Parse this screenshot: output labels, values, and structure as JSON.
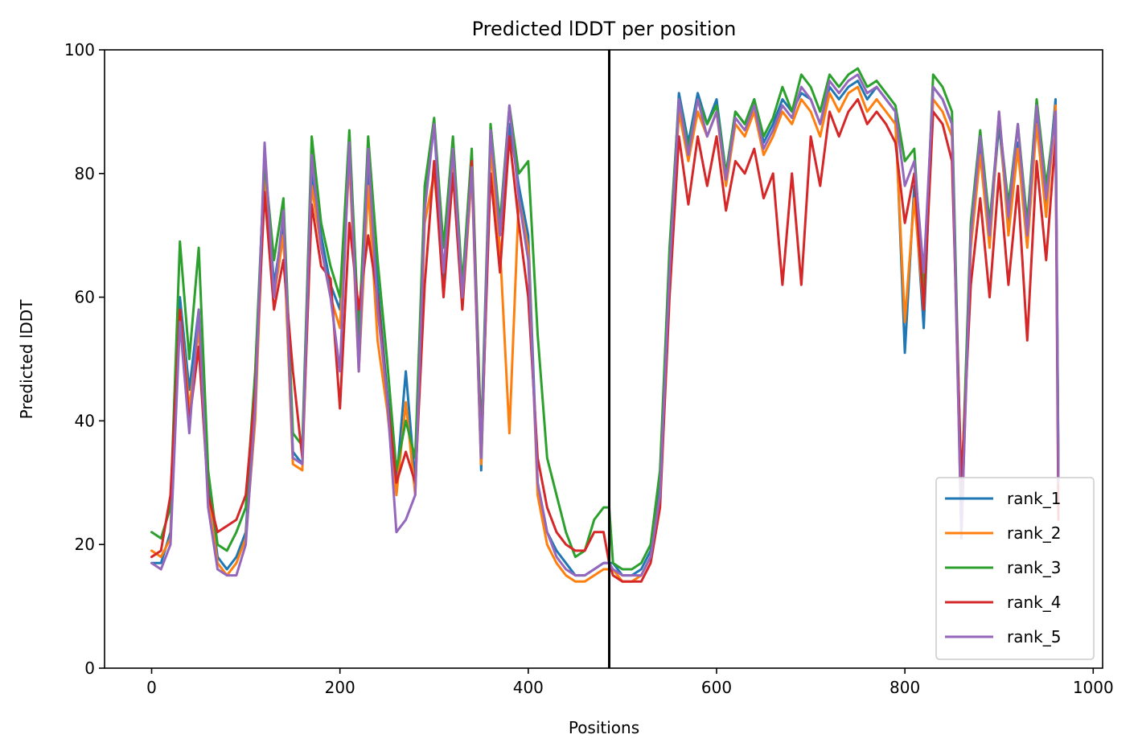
{
  "chart_data": {
    "type": "line",
    "title": "Predicted lDDT per position",
    "xlabel": "Positions",
    "ylabel": "Predicted lDDT",
    "xlim": [
      -50,
      1010
    ],
    "ylim": [
      0,
      100
    ],
    "xticks": [
      0,
      200,
      400,
      600,
      800,
      1000
    ],
    "yticks": [
      0,
      20,
      40,
      60,
      80,
      100
    ],
    "grid": false,
    "legend_position": "bottom-right",
    "vertical_line_x": 486,
    "series": [
      {
        "name": "rank_1",
        "color": "#1f77b4",
        "x": [
          0,
          10,
          20,
          30,
          40,
          50,
          60,
          70,
          80,
          90,
          100,
          110,
          120,
          130,
          140,
          150,
          160,
          170,
          180,
          190,
          200,
          210,
          220,
          230,
          240,
          250,
          260,
          270,
          280,
          290,
          300,
          310,
          320,
          330,
          340,
          350,
          360,
          370,
          380,
          390,
          400,
          410,
          420,
          430,
          440,
          450,
          460,
          470,
          480,
          486,
          490,
          500,
          510,
          520,
          530,
          540,
          550,
          560,
          570,
          580,
          590,
          600,
          610,
          620,
          630,
          640,
          650,
          660,
          670,
          680,
          690,
          700,
          710,
          720,
          730,
          740,
          750,
          760,
          770,
          780,
          790,
          800,
          810,
          820,
          830,
          840,
          850,
          860,
          870,
          880,
          890,
          900,
          910,
          920,
          930,
          940,
          950,
          960,
          963
        ],
        "values": [
          17,
          17,
          22,
          60,
          45,
          58,
          30,
          18,
          16,
          18,
          22,
          45,
          83,
          62,
          72,
          35,
          33,
          80,
          70,
          62,
          58,
          84,
          50,
          80,
          62,
          45,
          30,
          48,
          30,
          75,
          88,
          62,
          84,
          60,
          82,
          32,
          85,
          70,
          88,
          78,
          70,
          30,
          22,
          19,
          17,
          15,
          15,
          16,
          17,
          17,
          17,
          15,
          15,
          16,
          19,
          30,
          65,
          93,
          85,
          93,
          88,
          92,
          80,
          90,
          88,
          92,
          85,
          88,
          92,
          90,
          93,
          92,
          88,
          94,
          92,
          94,
          95,
          92,
          94,
          92,
          90,
          51,
          78,
          55,
          94,
          92,
          88,
          25,
          70,
          85,
          70,
          88,
          72,
          85,
          70,
          90,
          75,
          92,
          33
        ]
      },
      {
        "name": "rank_2",
        "color": "#ff7f0e",
        "x": [
          0,
          10,
          20,
          30,
          40,
          50,
          60,
          70,
          80,
          90,
          100,
          110,
          120,
          130,
          140,
          150,
          160,
          170,
          180,
          190,
          200,
          210,
          220,
          230,
          240,
          250,
          260,
          270,
          280,
          290,
          300,
          310,
          320,
          330,
          340,
          350,
          360,
          370,
          380,
          390,
          400,
          410,
          420,
          430,
          440,
          450,
          460,
          470,
          480,
          486,
          490,
          500,
          510,
          520,
          530,
          540,
          550,
          560,
          570,
          580,
          590,
          600,
          610,
          620,
          630,
          640,
          650,
          660,
          670,
          680,
          690,
          700,
          710,
          720,
          730,
          740,
          750,
          760,
          770,
          780,
          790,
          800,
          810,
          820,
          830,
          840,
          850,
          860,
          870,
          880,
          890,
          900,
          910,
          920,
          930,
          940,
          950,
          960,
          963
        ],
        "values": [
          19,
          18,
          21,
          58,
          42,
          55,
          28,
          17,
          15,
          17,
          21,
          40,
          80,
          60,
          70,
          33,
          32,
          78,
          68,
          60,
          55,
          82,
          48,
          78,
          53,
          42,
          28,
          43,
          28,
          72,
          80,
          64,
          82,
          58,
          80,
          33,
          84,
          68,
          38,
          76,
          68,
          28,
          20,
          17,
          15,
          14,
          14,
          15,
          16,
          16,
          16,
          14,
          14,
          15,
          18,
          28,
          62,
          90,
          82,
          90,
          86,
          90,
          78,
          88,
          86,
          90,
          83,
          86,
          90,
          88,
          92,
          90,
          86,
          93,
          90,
          93,
          94,
          90,
          92,
          90,
          88,
          56,
          76,
          58,
          92,
          90,
          86,
          22,
          68,
          83,
          68,
          90,
          70,
          84,
          68,
          88,
          73,
          91,
          30
        ]
      },
      {
        "name": "rank_3",
        "color": "#2ca02c",
        "x": [
          0,
          10,
          20,
          30,
          40,
          50,
          60,
          70,
          80,
          90,
          100,
          110,
          120,
          130,
          140,
          150,
          160,
          170,
          180,
          190,
          200,
          210,
          220,
          230,
          240,
          250,
          260,
          270,
          280,
          290,
          300,
          310,
          320,
          330,
          340,
          350,
          360,
          370,
          380,
          390,
          400,
          410,
          420,
          430,
          440,
          450,
          460,
          470,
          480,
          486,
          490,
          500,
          510,
          520,
          530,
          540,
          550,
          560,
          570,
          580,
          590,
          600,
          610,
          620,
          630,
          640,
          650,
          660,
          670,
          680,
          690,
          700,
          710,
          720,
          730,
          740,
          750,
          760,
          770,
          780,
          790,
          800,
          810,
          820,
          830,
          840,
          850,
          860,
          870,
          880,
          890,
          900,
          910,
          920,
          930,
          940,
          950,
          960,
          963
        ],
        "values": [
          22,
          21,
          26,
          69,
          50,
          68,
          32,
          20,
          19,
          22,
          26,
          48,
          82,
          66,
          76,
          38,
          36,
          86,
          72,
          65,
          60,
          87,
          54,
          86,
          66,
          50,
          32,
          40,
          34,
          78,
          89,
          68,
          86,
          62,
          84,
          37,
          88,
          72,
          91,
          80,
          82,
          54,
          34,
          28,
          22,
          18,
          19,
          24,
          26,
          26,
          17,
          16,
          16,
          17,
          20,
          32,
          68,
          92,
          84,
          92,
          88,
          91,
          80,
          90,
          88,
          92,
          86,
          89,
          94,
          90,
          96,
          94,
          90,
          96,
          94,
          96,
          97,
          94,
          95,
          93,
          91,
          82,
          84,
          60,
          96,
          94,
          90,
          27,
          72,
          87,
          72,
          89,
          75,
          88,
          72,
          92,
          78,
          90,
          32
        ]
      },
      {
        "name": "rank_4",
        "color": "#d62728",
        "x": [
          0,
          10,
          20,
          30,
          40,
          50,
          60,
          70,
          80,
          90,
          100,
          110,
          120,
          130,
          140,
          150,
          160,
          170,
          180,
          190,
          200,
          210,
          220,
          230,
          240,
          250,
          260,
          270,
          280,
          290,
          300,
          310,
          320,
          330,
          340,
          350,
          360,
          370,
          380,
          390,
          400,
          410,
          420,
          430,
          440,
          450,
          460,
          470,
          480,
          486,
          490,
          500,
          510,
          520,
          530,
          540,
          550,
          560,
          570,
          580,
          590,
          600,
          610,
          620,
          630,
          640,
          650,
          660,
          670,
          680,
          690,
          700,
          710,
          720,
          730,
          740,
          750,
          760,
          770,
          780,
          790,
          800,
          810,
          820,
          830,
          840,
          850,
          860,
          870,
          880,
          890,
          900,
          910,
          920,
          930,
          940,
          950,
          960,
          963
        ],
        "values": [
          18,
          19,
          28,
          58,
          40,
          52,
          28,
          22,
          23,
          24,
          28,
          45,
          77,
          58,
          66,
          48,
          34,
          75,
          65,
          63,
          42,
          72,
          58,
          70,
          60,
          44,
          30,
          35,
          30,
          62,
          82,
          60,
          80,
          58,
          82,
          35,
          80,
          64,
          86,
          72,
          60,
          34,
          26,
          22,
          20,
          19,
          19,
          22,
          22,
          17,
          15,
          14,
          14,
          14,
          17,
          26,
          60,
          86,
          75,
          86,
          78,
          86,
          74,
          82,
          80,
          84,
          76,
          80,
          62,
          80,
          62,
          86,
          78,
          90,
          86,
          90,
          92,
          88,
          90,
          88,
          85,
          72,
          80,
          58,
          90,
          88,
          82,
          30,
          62,
          76,
          60,
          80,
          62,
          78,
          53,
          82,
          66,
          86,
          24
        ]
      },
      {
        "name": "rank_5",
        "color": "#9467bd",
        "x": [
          0,
          10,
          20,
          30,
          40,
          50,
          60,
          70,
          80,
          90,
          100,
          110,
          120,
          130,
          140,
          150,
          160,
          170,
          180,
          190,
          200,
          210,
          220,
          230,
          240,
          250,
          260,
          270,
          280,
          290,
          300,
          310,
          320,
          330,
          340,
          350,
          360,
          370,
          380,
          390,
          400,
          410,
          420,
          430,
          440,
          450,
          460,
          470,
          480,
          486,
          490,
          500,
          510,
          520,
          530,
          540,
          550,
          560,
          570,
          580,
          590,
          600,
          610,
          620,
          630,
          640,
          650,
          660,
          670,
          680,
          690,
          700,
          710,
          720,
          730,
          740,
          750,
          760,
          770,
          780,
          790,
          800,
          810,
          820,
          830,
          840,
          850,
          860,
          870,
          880,
          890,
          900,
          910,
          920,
          930,
          940,
          950,
          960,
          963
        ],
        "values": [
          17,
          16,
          20,
          56,
          38,
          58,
          26,
          16,
          15,
          15,
          20,
          42,
          85,
          60,
          74,
          34,
          33,
          83,
          68,
          60,
          48,
          85,
          48,
          84,
          58,
          44,
          22,
          24,
          28,
          74,
          88,
          64,
          84,
          60,
          81,
          34,
          87,
          70,
          91,
          76,
          66,
          30,
          22,
          18,
          16,
          15,
          15,
          16,
          17,
          17,
          16,
          15,
          15,
          15,
          18,
          28,
          64,
          92,
          83,
          92,
          86,
          90,
          79,
          89,
          87,
          91,
          84,
          87,
          91,
          89,
          94,
          92,
          88,
          95,
          93,
          95,
          96,
          93,
          94,
          92,
          90,
          78,
          82,
          64,
          94,
          92,
          88,
          21,
          70,
          86,
          70,
          90,
          73,
          88,
          70,
          91,
          76,
          90,
          30
        ]
      }
    ]
  }
}
